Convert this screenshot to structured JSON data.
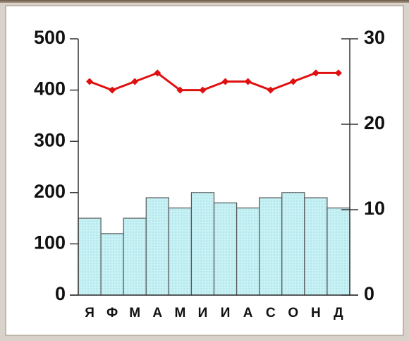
{
  "chart_data": {
    "type": "bar",
    "categories": [
      "Я",
      "Ф",
      "М",
      "А",
      "М",
      "И",
      "И",
      "А",
      "С",
      "О",
      "Н",
      "Д"
    ],
    "series": [
      {
        "type": "bar",
        "color": "#c6f1f5",
        "values": [
          150,
          120,
          150,
          190,
          170,
          200,
          180,
          170,
          190,
          200,
          190,
          170
        ]
      },
      {
        "type": "line",
        "color": "#e01010",
        "axis": "y2",
        "values": [
          25,
          24,
          25,
          26,
          24,
          24,
          25,
          25,
          24,
          25,
          26,
          26
        ]
      }
    ],
    "ylim": [
      0,
      500
    ],
    "yticks": [
      0,
      100,
      200,
      300,
      400,
      500
    ],
    "y2lim": [
      0,
      30
    ],
    "y2ticks": [
      0,
      10,
      20,
      30
    ]
  }
}
